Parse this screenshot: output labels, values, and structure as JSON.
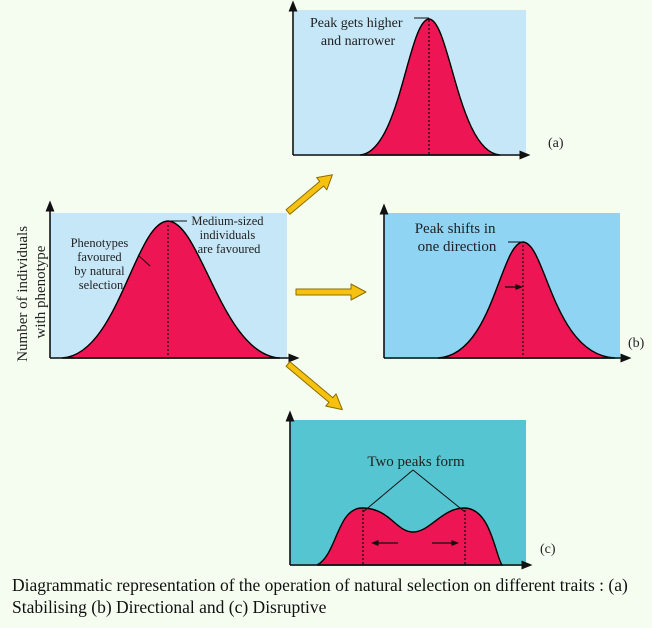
{
  "colors": {
    "page_bg": "#f5fdf0",
    "panel_original": "#c6e7f7",
    "panel_a": "#c6e7f7",
    "panel_b": "#8fd4f3",
    "panel_c": "#55c6d1",
    "curve_fill": "#ed1553",
    "arrow_fill": "#f7c20f",
    "arrow_stroke": "#8a6d00",
    "axis": "#111111"
  },
  "original": {
    "y_axis_label_line1": "Number of individuals",
    "y_axis_label_line2": "with phenotype",
    "left_note": [
      "Phenotypes",
      "favoured",
      "by natural",
      "selection"
    ],
    "peak_note": [
      "Medium-sized",
      "individuals",
      "are favoured"
    ]
  },
  "panel_a": {
    "note": [
      "Peak gets higher",
      "and narrower"
    ],
    "tag": "(a)"
  },
  "panel_b": {
    "note": [
      "Peak shifts in",
      "one direction"
    ],
    "tag": "(b)"
  },
  "panel_c": {
    "note": "Two peaks form",
    "tag": "(c)"
  },
  "caption": "Diagrammatic representation of the operation of natural selection on different traits : (a) Stabilising (b) Directional and (c) Disruptive",
  "icons": [
    "yellow-arrow-icon",
    "small-black-arrow-icon"
  ]
}
